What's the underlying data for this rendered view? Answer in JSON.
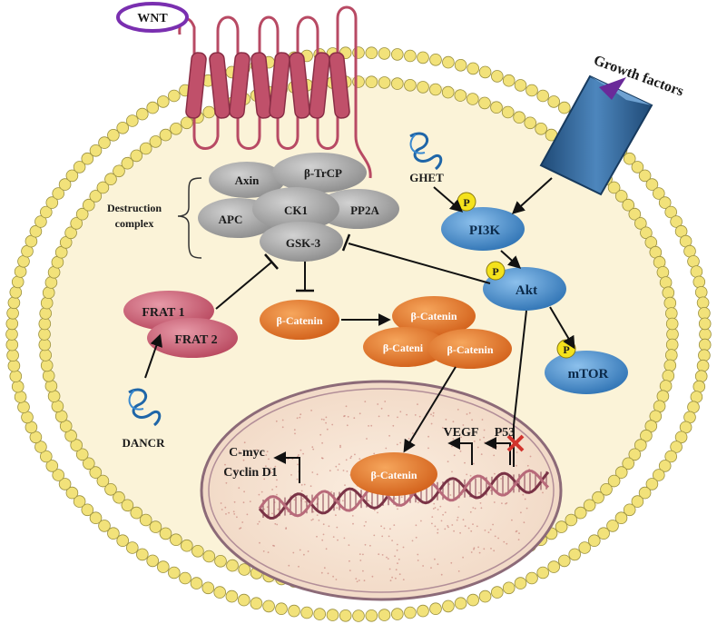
{
  "labels": {
    "wnt": "WNT",
    "growth_factors": "Growth factors",
    "destruction_line1": "Destruction",
    "destruction_line2": "complex",
    "axin": "Axin",
    "btrcp": "β-TrCP",
    "apc": "APC",
    "ck1": "CK1",
    "pp2a": "PP2A",
    "gsk3": "GSK-3",
    "ghet": "GHET",
    "pi3k": "PI3K",
    "akt": "Akt",
    "mtor": "mTOR",
    "phospho": "P",
    "frat1": "FRAT 1",
    "frat2": "FRAT 2",
    "dancr": "DANCR",
    "bcat_free": "β-Catenin",
    "bcat_top": "β-Catenin",
    "bcat_left": "β-Cateni",
    "bcat_right": "β-Catenin",
    "bcat_nuclear": "β-Catenin",
    "vegf": "VEGF",
    "p53": "P53",
    "cmyc": "C-myc",
    "cyclind1": "Cyclin D1"
  },
  "colors": {
    "membrane_bead": "#f2e27a",
    "membrane_bead_stroke": "#9a9040",
    "cytoplasm": "#fbf3d8",
    "nucleus": "#f6e6d6",
    "receptor_wnt": "#c0506a",
    "receptor_gf": "#2e5d8c",
    "complex_grey": "#a4a4a4",
    "frat_pink": "#d06478",
    "beta_catenin": "#e87a2e",
    "pi3k_blue": "#4a8ec8",
    "phospho_yellow": "#f4e21c",
    "wnt_ring": "#7a2fb0",
    "inhibit_mark": "#d2332d"
  }
}
